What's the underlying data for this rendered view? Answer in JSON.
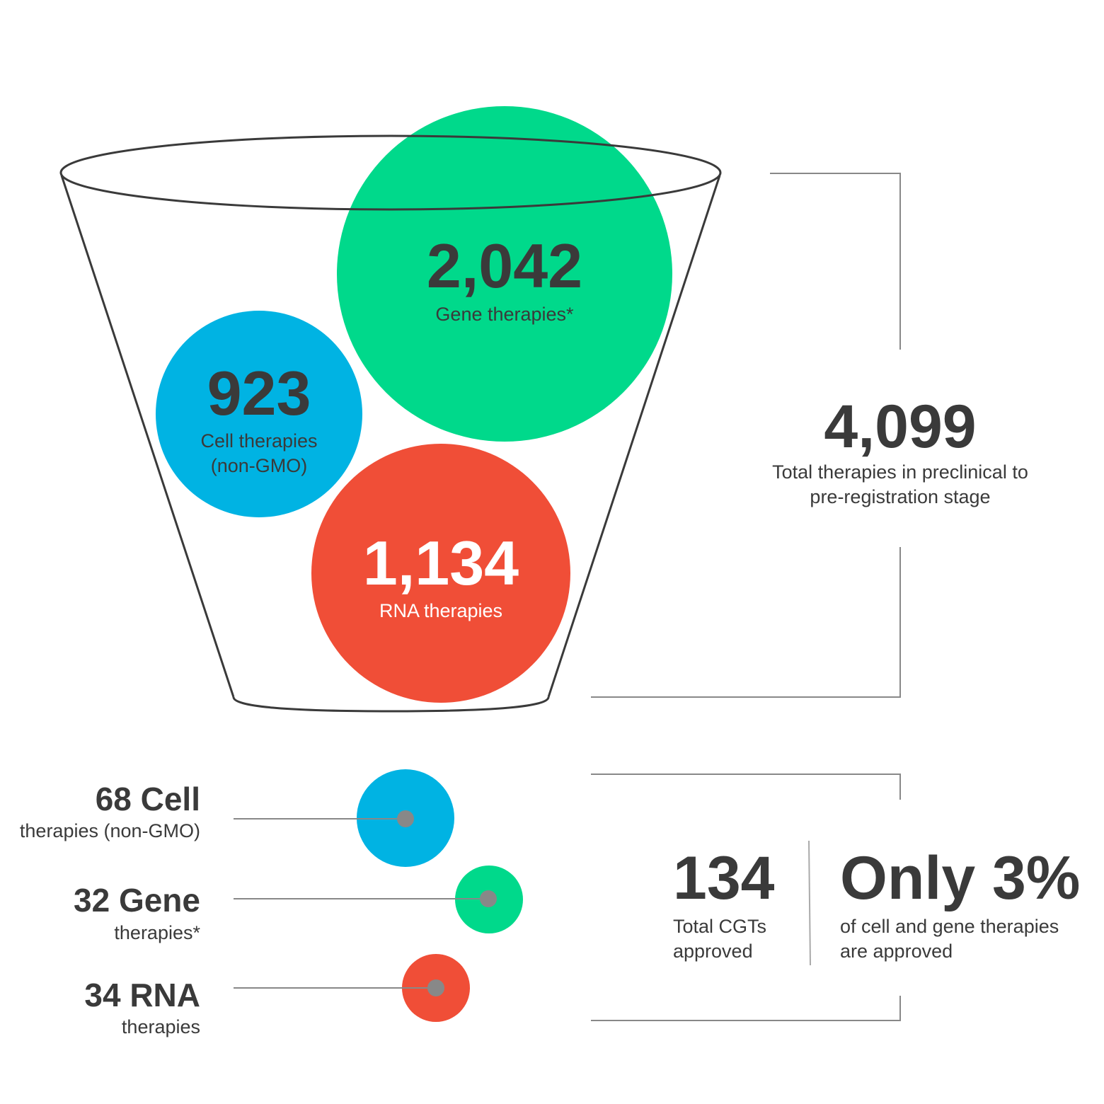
{
  "colors": {
    "gene": "#00d98b",
    "cell": "#00b3e3",
    "rna": "#f04e37",
    "text": "#3a3a3a",
    "line": "#888888"
  },
  "funnel": {
    "gene": {
      "value": "2,042",
      "label": "Gene therapies*"
    },
    "cell": {
      "value": "923",
      "label_line1": "Cell therapies",
      "label_line2": "(non-GMO)"
    },
    "rna": {
      "value": "1,134",
      "label": "RNA therapies"
    }
  },
  "total": {
    "value": "4,099",
    "label_line1": "Total therapies in preclinical to",
    "label_line2": "pre-registration stage"
  },
  "approved": {
    "cell": {
      "head": "68 Cell",
      "sub": "therapies (non-GMO)"
    },
    "gene": {
      "head": "32 Gene",
      "sub": "therapies*"
    },
    "rna": {
      "head": "34 RNA",
      "sub": "therapies"
    }
  },
  "summary": {
    "count": "134",
    "count_label_line1": "Total CGTs",
    "count_label_line2": "approved",
    "percent": "Only 3%",
    "percent_label_line1": "of cell and gene therapies",
    "percent_label_line2": "are approved"
  }
}
